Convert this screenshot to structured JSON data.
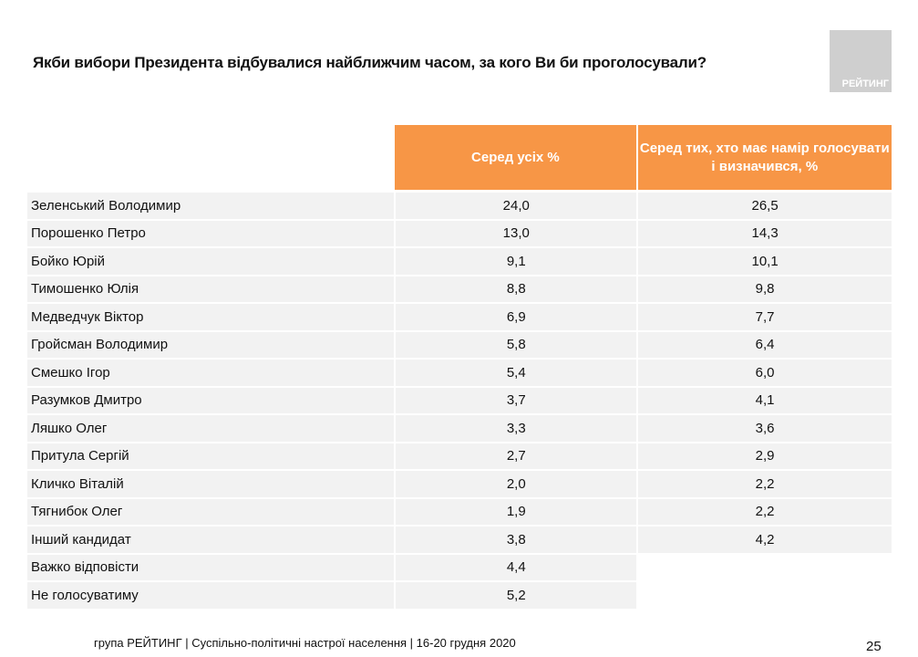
{
  "title": "Якби вибори Президента відбувалися найближчим часом, за кого Ви би проголосували?",
  "logo_text": "РЕЙТИНГ",
  "columns": [
    "Серед усіх %",
    "Серед тих, хто має намір голосувати і визначився, %"
  ],
  "rows": [
    {
      "name": "Зеленський Володимир",
      "all": "24,0",
      "decided": "26,5"
    },
    {
      "name": "Порошенко Петро",
      "all": "13,0",
      "decided": "14,3"
    },
    {
      "name": "Бойко Юрій",
      "all": "9,1",
      "decided": "10,1"
    },
    {
      "name": "Тимошенко Юлія",
      "all": "8,8",
      "decided": "9,8"
    },
    {
      "name": "Медведчук Віктор",
      "all": "6,9",
      "decided": "7,7"
    },
    {
      "name": "Гройсман Володимир",
      "all": "5,8",
      "decided": "6,4"
    },
    {
      "name": "Смешко Ігор",
      "all": "5,4",
      "decided": "6,0"
    },
    {
      "name": "Разумков Дмитро",
      "all": "3,7",
      "decided": "4,1"
    },
    {
      "name": "Ляшко Олег",
      "all": "3,3",
      "decided": "3,6"
    },
    {
      "name": "Притула Сергій",
      "all": "2,7",
      "decided": "2,9"
    },
    {
      "name": "Кличко Віталій",
      "all": "2,0",
      "decided": "2,2"
    },
    {
      "name": "Тягнибок Олег",
      "all": "1,9",
      "decided": "2,2"
    },
    {
      "name": "Інший кандидат",
      "all": "3,8",
      "decided": "4,2"
    },
    {
      "name": "Важко відповісти",
      "all": "4,4",
      "decided": null
    },
    {
      "name": "Не голосуватиму",
      "all": "5,2",
      "decided": null
    }
  ],
  "footer": "група РЕЙТИНГ | Суспільно-політичні настрої населення | 16-20 грудня 2020",
  "page_number": "25",
  "colors": {
    "header": "#f79646",
    "row": "#f2f2f2"
  }
}
